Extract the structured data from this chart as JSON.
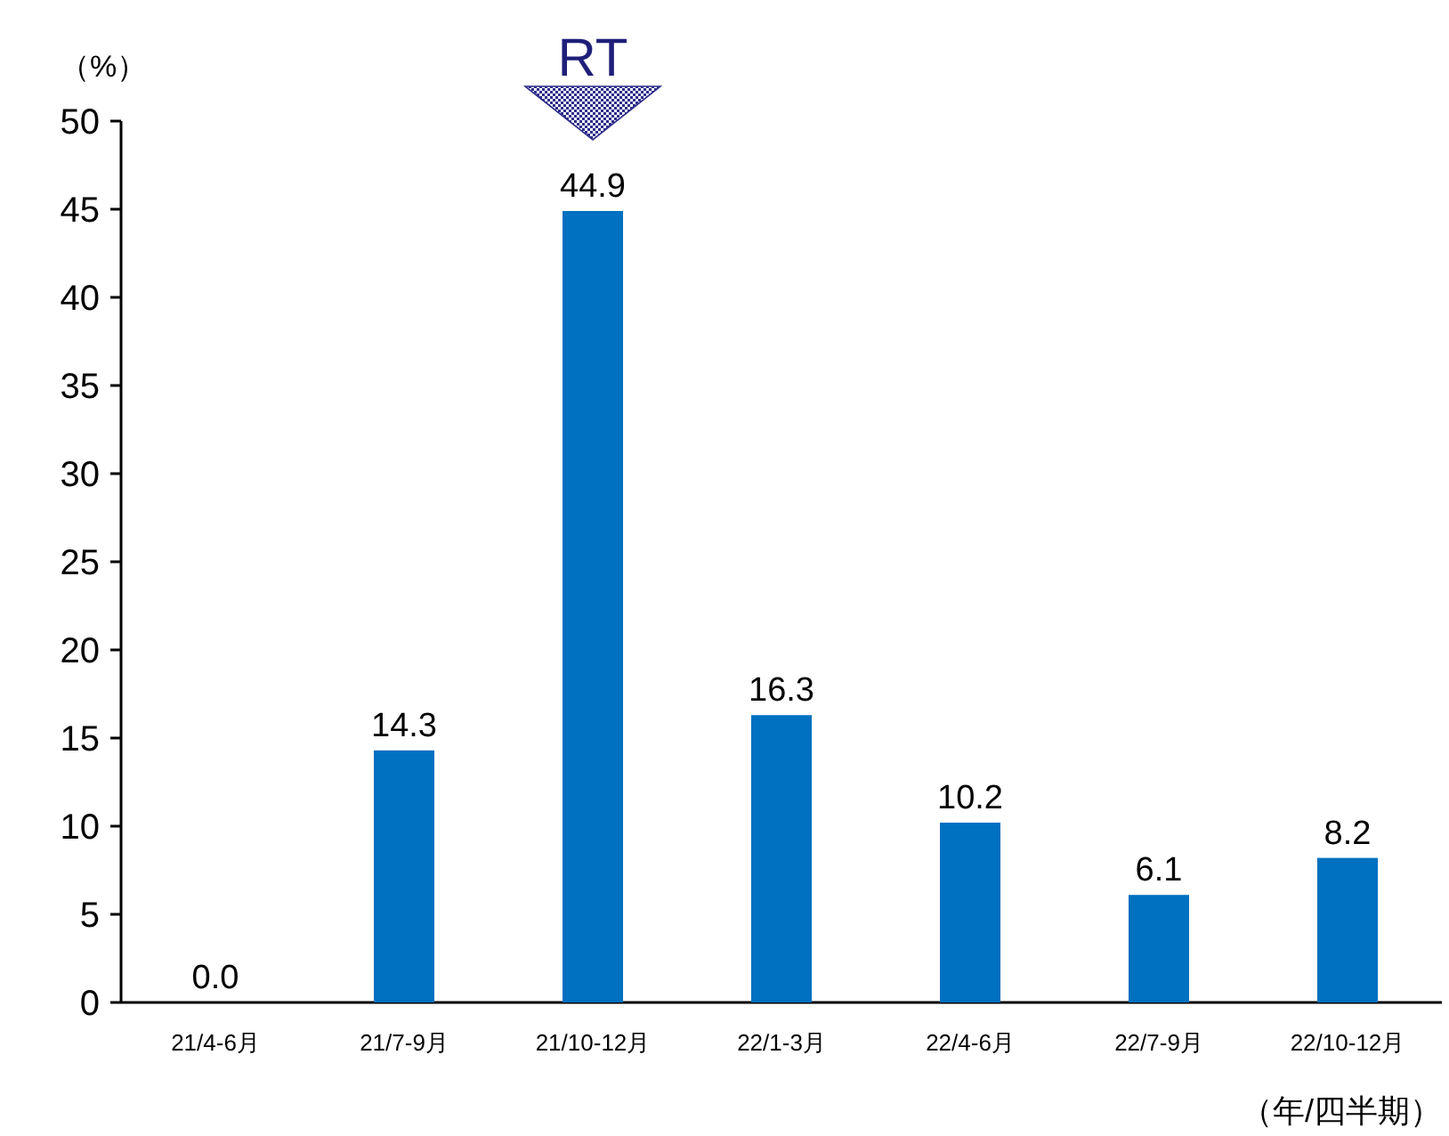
{
  "chart_data": {
    "type": "bar",
    "ylabel": "（%）",
    "xlabel": "（年/四半期）",
    "categories": [
      "21/4-6月",
      "21/7-9月",
      "21/10-12月",
      "22/1-3月",
      "22/4-6月",
      "22/7-9月",
      "22/10-12月"
    ],
    "values": [
      0.0,
      14.3,
      44.9,
      16.3,
      10.2,
      6.1,
      8.2
    ],
    "value_labels": [
      "0.0",
      "14.3",
      "44.9",
      "16.3",
      "10.2",
      "6.1",
      "8.2"
    ],
    "color": "#0070c0",
    "ylim": [
      0,
      50
    ],
    "yticks": [
      0,
      5,
      10,
      15,
      20,
      25,
      30,
      35,
      40,
      45,
      50
    ],
    "annotations": [
      {
        "text": "RT",
        "x": "21/10-12月",
        "y": 44.9
      }
    ]
  }
}
